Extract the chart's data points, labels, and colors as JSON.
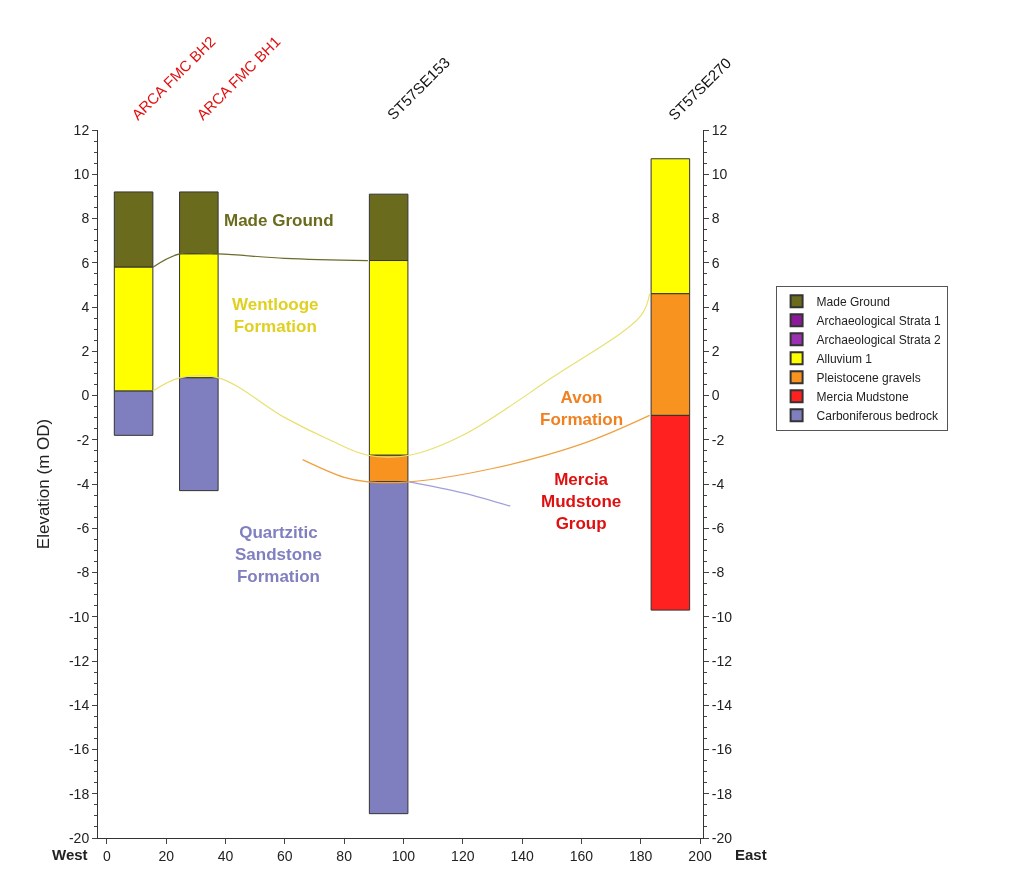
{
  "chart_data": {
    "type": "bar",
    "ylabel": "Elevation (m OD)",
    "x": [
      9,
      31,
      95,
      190
    ],
    "xlim": [
      -3,
      201
    ],
    "xticks": [
      0,
      20,
      40,
      60,
      80,
      100,
      120,
      140,
      160,
      180,
      200
    ],
    "ylim": [
      -20,
      12
    ],
    "yticks": [
      -20,
      -18,
      -16,
      -14,
      -12,
      -10,
      -8,
      -6,
      -4,
      -2,
      0,
      2,
      4,
      6,
      8,
      10,
      12
    ],
    "y2lim": [
      -20,
      12
    ],
    "y2ticks": [
      -20,
      -18,
      -16,
      -14,
      -12,
      -10,
      -8,
      -6,
      -4,
      -2,
      0,
      2,
      4,
      6,
      8,
      10,
      12
    ],
    "legend": "right",
    "series": [
      {
        "name": "Made Ground",
        "color": "#6b6b1e",
        "base": [
          5.8,
          6.4,
          6.1,
          null
        ],
        "values": [
          3.4,
          2.8,
          3.0,
          null
        ]
      },
      {
        "name": "Archaeological Strata 1",
        "color": "#8b1a9a",
        "base": [
          null,
          null,
          null,
          null
        ],
        "values": [
          null,
          null,
          null,
          null
        ]
      },
      {
        "name": "Archaeological Strata 2",
        "color": "#9b30b0",
        "base": [
          null,
          null,
          null,
          null
        ],
        "values": [
          null,
          null,
          null,
          null
        ]
      },
      {
        "name": "Alluvium 1",
        "color": "#ffff00",
        "base": [
          0.2,
          0.8,
          -2.7,
          4.6
        ],
        "values": [
          5.6,
          5.6,
          8.8,
          6.1
        ]
      },
      {
        "name": "Pleistocene gravels",
        "color": "#f7931e",
        "base": [
          null,
          null,
          -3.9,
          -0.9
        ],
        "values": [
          null,
          null,
          1.2,
          5.5
        ]
      },
      {
        "name": "Mercia Mudstone",
        "color": "#ff2020",
        "base": [
          null,
          null,
          null,
          -9.7
        ],
        "values": [
          null,
          null,
          null,
          8.8
        ]
      },
      {
        "name": "Carboniferous bedrock",
        "color": "#7f7fbf",
        "base": [
          -1.8,
          -4.3,
          -18.9,
          null
        ],
        "values": [
          2.0,
          5.1,
          15.0,
          null
        ]
      },
      {
        "type": "line",
        "color": "#6b6b2a",
        "x": [
          15.5,
          24.5,
          37.7,
          60,
          88
        ],
        "values": [
          5.8,
          6.4,
          6.4,
          6.2,
          6.1
        ]
      },
      {
        "type": "line",
        "color": "#e8e070",
        "x": [
          15.5,
          24.5,
          37.7,
          60,
          75,
          88,
          102,
          120,
          150,
          180,
          183
        ],
        "values": [
          0.2,
          0.8,
          0.8,
          -1.0,
          -2.0,
          -2.7,
          -2.7,
          -1.8,
          0.8,
          3.6,
          4.6
        ]
      },
      {
        "type": "line",
        "color": "#f0a040",
        "x": [
          66,
          80,
          88,
          102,
          130,
          160,
          183
        ],
        "values": [
          -2.9,
          -3.7,
          -3.9,
          -3.9,
          -3.3,
          -2.2,
          -0.9
        ]
      },
      {
        "type": "line",
        "color": "#a0a0d8",
        "x": [
          102,
          120,
          136
        ],
        "values": [
          -3.9,
          -4.4,
          -5.0
        ]
      }
    ],
    "annotations": [
      "ARCA FMC BH2",
      "ARCA FMC BH1",
      "ST57SE153",
      "ST57SE270",
      "Made Ground",
      "Wentlooge\nFormation",
      "Avon\nFormation",
      "Mercia\nMudstone\nGroup",
      "Quartzitic\nSandstone\nFormation",
      "West",
      "East"
    ]
  }
}
